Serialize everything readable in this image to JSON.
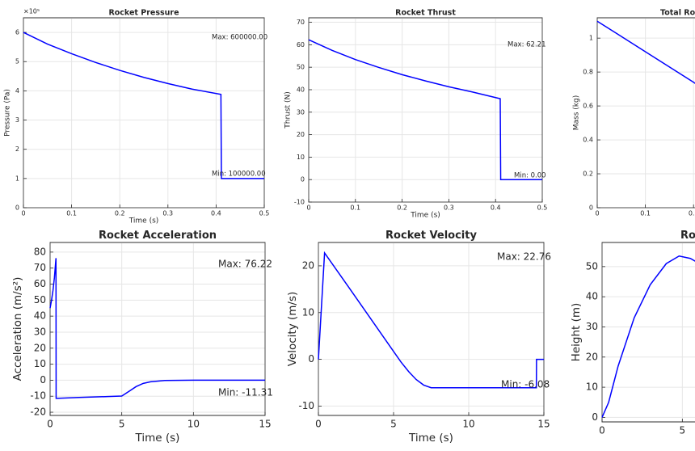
{
  "chart_data": [
    {
      "type": "line",
      "title": "Rocket Pressure",
      "xlabel": "Time (s)",
      "ylabel": "Pressure (Pa)",
      "exponent_label": "×10⁵",
      "x": [
        0,
        0.05,
        0.1,
        0.15,
        0.2,
        0.25,
        0.3,
        0.35,
        0.41,
        0.411,
        0.5
      ],
      "series": [
        {
          "color": "#0000ff",
          "values": [
            600000,
            560000,
            527000,
            497000,
            470000,
            446000,
            425000,
            406000,
            388000,
            100000,
            100000
          ]
        }
      ],
      "xlim": [
        0,
        0.5
      ],
      "xticks": [
        0,
        0.1,
        0.2,
        0.3,
        0.4,
        0.5
      ],
      "ylim": [
        0,
        650000
      ],
      "yticks": [
        {
          "value": 0,
          "label": "0"
        },
        {
          "value": 100000,
          "label": "1"
        },
        {
          "value": 200000,
          "label": "2"
        },
        {
          "value": 300000,
          "label": "3"
        },
        {
          "value": 400000,
          "label": "4"
        },
        {
          "value": 500000,
          "label": "5"
        },
        {
          "value": 600000,
          "label": "6"
        }
      ],
      "grid": true,
      "annotations": [
        "Max: 600000.00",
        "Min: 100000.00"
      ]
    },
    {
      "type": "line",
      "title": "Rocket Thrust",
      "xlabel": "Time (s)",
      "ylabel": "Thrust (N)",
      "x": [
        0,
        0.05,
        0.1,
        0.15,
        0.2,
        0.25,
        0.3,
        0.35,
        0.41,
        0.411,
        0.5
      ],
      "series": [
        {
          "color": "#0000ff",
          "values": [
            62.21,
            57.5,
            53.4,
            49.9,
            46.7,
            43.9,
            41.3,
            39,
            36,
            0,
            0
          ]
        }
      ],
      "xlim": [
        0,
        0.5
      ],
      "xticks": [
        0,
        0.1,
        0.2,
        0.3,
        0.4,
        0.5
      ],
      "ylim": [
        -10,
        72
      ],
      "yticks": [
        -10,
        0,
        10,
        20,
        30,
        40,
        50,
        60,
        70
      ],
      "grid": true,
      "annotations": [
        "Max: 62.21",
        "Min: 0.00"
      ]
    },
    {
      "type": "line",
      "title": "Total Roc",
      "ylabel": "Mass (kg)",
      "x": [
        0,
        0.1,
        0.2,
        0.21
      ],
      "series": [
        {
          "color": "#0000ff",
          "values": [
            1.1,
            0.92,
            0.74,
            0.72
          ]
        }
      ],
      "xlim": [
        0,
        0.5
      ],
      "xticks": [
        0,
        0.1,
        0.2
      ],
      "ylim": [
        0,
        1.12
      ],
      "yticks": [
        0,
        0.2,
        0.4,
        0.6,
        0.8,
        1
      ],
      "grid": true
    },
    {
      "type": "line",
      "title": "Rocket Acceleration",
      "xlabel": "Time (s)",
      "ylabel": "Acceleration (m/s²)",
      "x": [
        0,
        0.1,
        0.2,
        0.3,
        0.41,
        0.42,
        0.45,
        2,
        4,
        5,
        5.5,
        6,
        6.5,
        7,
        8,
        10,
        15
      ],
      "series": [
        {
          "color": "#0000ff",
          "values": [
            45,
            50,
            56,
            64,
            76.22,
            -11.31,
            -11.31,
            -10.8,
            -10.2,
            -9.9,
            -7,
            -4,
            -2,
            -1,
            -0.2,
            0,
            0
          ]
        }
      ],
      "xlim": [
        0,
        15
      ],
      "xticks": [
        0,
        5,
        10,
        15
      ],
      "ylim": [
        -22,
        86
      ],
      "yticks": [
        -20,
        -10,
        0,
        10,
        20,
        30,
        40,
        50,
        60,
        70,
        80
      ],
      "grid": true,
      "annotations": [
        "Max: 76.22",
        "Min: -11.31"
      ]
    },
    {
      "type": "line",
      "title": "Rocket Velocity",
      "xlabel": "Time (s)",
      "ylabel": "Velocity (m/s)",
      "x": [
        0,
        0.41,
        2,
        4,
        5,
        5.5,
        6,
        6.5,
        7,
        7.5,
        10,
        14.5,
        14.51,
        15
      ],
      "series": [
        {
          "color": "#0000ff",
          "values": [
            0,
            22.76,
            15.5,
            6.3,
            1.7,
            -0.6,
            -2.6,
            -4.3,
            -5.5,
            -6.08,
            -6.08,
            -6.08,
            0,
            0
          ]
        }
      ],
      "xlim": [
        0,
        15
      ],
      "xticks": [
        0,
        5,
        10,
        15
      ],
      "ylim": [
        -12,
        25
      ],
      "yticks": [
        -10,
        0,
        10,
        20
      ],
      "grid": true,
      "annotations": [
        "Max: 22.76",
        "Min: -6.08"
      ]
    },
    {
      "type": "line",
      "title": "Ro",
      "ylabel": "Height (m)",
      "x": [
        0,
        0.41,
        1,
        2,
        3,
        4,
        4.8,
        5.5,
        6.4
      ],
      "series": [
        {
          "color": "#0000ff",
          "values": [
            0,
            5,
            17,
            33,
            44,
            51,
            53.5,
            52.7,
            50
          ]
        }
      ],
      "xlim": [
        0,
        15
      ],
      "xticks": [
        0,
        5
      ],
      "ylim": [
        -1.5,
        58
      ],
      "yticks": [
        0,
        10,
        20,
        30,
        40,
        50
      ],
      "grid": true
    }
  ]
}
